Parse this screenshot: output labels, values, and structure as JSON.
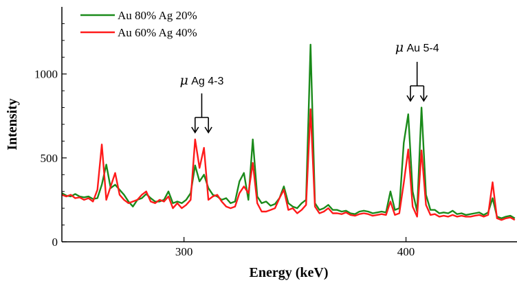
{
  "chart_data": {
    "type": "line",
    "xlabel": "Energy (keV)",
    "ylabel": "Intensity",
    "xlim": [
      245,
      450
    ],
    "ylim": [
      0,
      1400
    ],
    "xticks": [
      300,
      400
    ],
    "yticks": [
      0,
      500,
      1000
    ],
    "grid": false,
    "legend_position": "top-left",
    "series": [
      {
        "name": "Au 80%  Ag 20%",
        "color": "#1a8a1a",
        "x": [
          245,
          247,
          249,
          251,
          253,
          255,
          257,
          259,
          261,
          263,
          265,
          267,
          269,
          271,
          273,
          275,
          277,
          279,
          281,
          283,
          285,
          287,
          289,
          291,
          293,
          295,
          297,
          299,
          301,
          303,
          305,
          307,
          309,
          311,
          313,
          315,
          317,
          319,
          321,
          323,
          325,
          327,
          329,
          331,
          333,
          335,
          337,
          339,
          341,
          343,
          345,
          347,
          349,
          351,
          353,
          355,
          357,
          359,
          361,
          363,
          365,
          367,
          369,
          371,
          373,
          375,
          377,
          379,
          381,
          383,
          385,
          387,
          389,
          391,
          393,
          395,
          397,
          399,
          401,
          403,
          405,
          407,
          409,
          411,
          413,
          415,
          417,
          419,
          421,
          423,
          425,
          427,
          429,
          431,
          433,
          435,
          437,
          439,
          441,
          443,
          445,
          447,
          449
        ],
        "y": [
          290,
          275,
          270,
          285,
          270,
          265,
          270,
          255,
          260,
          340,
          460,
          320,
          340,
          310,
          280,
          240,
          210,
          250,
          260,
          285,
          260,
          240,
          240,
          250,
          300,
          230,
          240,
          230,
          250,
          290,
          455,
          360,
          400,
          320,
          280,
          270,
          250,
          260,
          230,
          240,
          360,
          410,
          250,
          610,
          270,
          230,
          240,
          215,
          225,
          260,
          330,
          230,
          210,
          200,
          230,
          250,
          1175,
          230,
          190,
          200,
          220,
          190,
          190,
          180,
          185,
          170,
          165,
          180,
          185,
          180,
          170,
          175,
          180,
          175,
          300,
          190,
          200,
          590,
          760,
          300,
          180,
          800,
          280,
          190,
          190,
          170,
          175,
          170,
          185,
          165,
          170,
          160,
          165,
          170,
          175,
          160,
          175,
          260,
          150,
          140,
          150,
          155,
          140
        ]
      },
      {
        "name": "Au 60%  Ag 40%",
        "color": "#ff1a1a",
        "x": [
          245,
          247,
          249,
          251,
          253,
          255,
          257,
          259,
          261,
          263,
          265,
          267,
          269,
          271,
          273,
          275,
          277,
          279,
          281,
          283,
          285,
          287,
          289,
          291,
          293,
          295,
          297,
          299,
          301,
          303,
          305,
          307,
          309,
          311,
          313,
          315,
          317,
          319,
          321,
          323,
          325,
          327,
          329,
          331,
          333,
          335,
          337,
          339,
          341,
          343,
          345,
          347,
          349,
          351,
          353,
          355,
          357,
          359,
          361,
          363,
          365,
          367,
          369,
          371,
          373,
          375,
          377,
          379,
          381,
          383,
          385,
          387,
          389,
          391,
          393,
          395,
          397,
          399,
          401,
          403,
          405,
          407,
          409,
          411,
          413,
          415,
          417,
          419,
          421,
          423,
          425,
          427,
          429,
          431,
          433,
          435,
          437,
          439,
          441,
          443,
          445,
          447,
          449
        ],
        "y": [
          280,
          270,
          280,
          260,
          265,
          250,
          260,
          240,
          310,
          580,
          250,
          330,
          410,
          280,
          250,
          230,
          240,
          250,
          280,
          300,
          240,
          230,
          250,
          240,
          270,
          200,
          230,
          200,
          220,
          250,
          610,
          440,
          560,
          250,
          270,
          280,
          240,
          210,
          200,
          210,
          290,
          330,
          290,
          470,
          230,
          180,
          180,
          190,
          200,
          260,
          310,
          190,
          200,
          170,
          190,
          220,
          790,
          210,
          170,
          180,
          200,
          170,
          170,
          165,
          175,
          160,
          155,
          165,
          170,
          165,
          155,
          160,
          165,
          160,
          240,
          160,
          170,
          350,
          550,
          210,
          150,
          545,
          220,
          160,
          165,
          150,
          155,
          150,
          160,
          150,
          155,
          150,
          150,
          155,
          160,
          150,
          160,
          355,
          140,
          130,
          140,
          145,
          130
        ]
      }
    ],
    "annotations": [
      {
        "symbol": "μ",
        "text": "Ag 4-3",
        "x1": 305,
        "x2": 311
      },
      {
        "symbol": "μ",
        "text": "Au 5-4",
        "x1": 402,
        "x2": 408
      }
    ]
  }
}
